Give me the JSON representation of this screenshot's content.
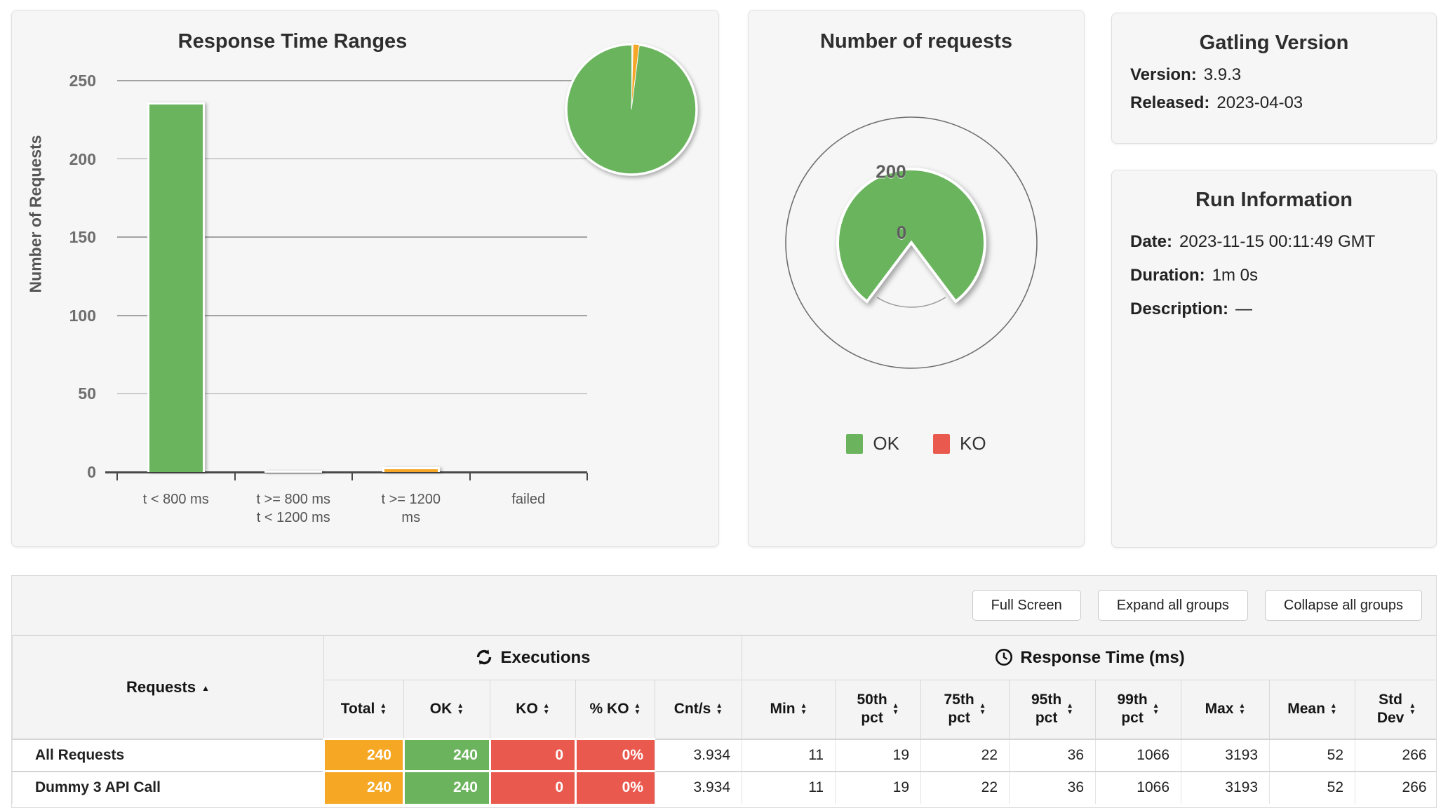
{
  "colors": {
    "bar_green": "#6ab45e",
    "bar_yellow": "#f8d648",
    "bar_orange": "#f7a728",
    "gauge_green": "#6ab45e",
    "cell_orange": "#f6a723",
    "cell_green": "#6bb35c",
    "cell_red": "#ea594e",
    "legend_green": "#6bb35c",
    "legend_red": "#e9594e"
  },
  "chart_data": [
    {
      "type": "bar",
      "title": "Response Time Ranges",
      "xlabel": "",
      "ylabel": "Number of Requests",
      "categories": [
        "t < 800 ms",
        "t >= 800 ms t < 1200 ms",
        "t >= 1200 ms",
        "failed"
      ],
      "categories_lines": [
        [
          "t < 800 ms"
        ],
        [
          "t >= 800 ms",
          "t < 1200 ms"
        ],
        [
          "t >= 1200",
          "ms"
        ],
        [
          "failed"
        ]
      ],
      "values": [
        236,
        1,
        3,
        0
      ],
      "bar_colors": [
        "#6ab45e",
        "#f8d648",
        "#f7a728",
        "#ea594e"
      ],
      "ylim": [
        0,
        250
      ],
      "yticks": [
        0,
        50,
        100,
        150,
        200,
        250
      ],
      "grid": true,
      "legend_position": "none"
    },
    {
      "type": "pie",
      "title": "Response time ranges inset pie",
      "labels": [
        "t < 800 ms",
        "t >= 800 ms t < 1200 ms",
        "t >= 1200 ms",
        "failed"
      ],
      "values": [
        236,
        1,
        3,
        0
      ],
      "colors": [
        "#6ab45e",
        "#ffffff",
        "#f7a728",
        "#ea594e"
      ]
    },
    {
      "type": "pie",
      "title": "Number of requests",
      "labels": [
        "OK",
        "KO"
      ],
      "values": [
        240,
        0
      ],
      "colors": [
        "#6ab45e",
        "#e9594e"
      ],
      "axis_tick_labels": [
        "200",
        "0"
      ],
      "legend": [
        "OK",
        "KO"
      ],
      "legend_position": "bottom"
    }
  ],
  "info": {
    "gatling_version": {
      "title": "Gatling Version",
      "version_label": "Version:",
      "version_value": "3.9.3",
      "released_label": "Released:",
      "released_value": "2023-04-03"
    },
    "run_information": {
      "title": "Run Information",
      "date_label": "Date:",
      "date_value": "2023-11-15 00:11:49 GMT",
      "duration_label": "Duration:",
      "duration_value": "1m 0s",
      "description_label": "Description:",
      "description_value": "—"
    }
  },
  "toolbar": {
    "full_screen": "Full Screen",
    "expand_all": "Expand all groups",
    "collapse_all": "Collapse all groups"
  },
  "statistics_table": {
    "requests_header": "Requests",
    "groups": {
      "executions": "Executions",
      "response_time": "Response Time (ms)"
    },
    "columns": [
      "Total",
      "OK",
      "KO",
      "% KO",
      "Cnt/s",
      "Min",
      "50th\npct",
      "75th\npct",
      "95th\npct",
      "99th\npct",
      "Max",
      "Mean",
      "Std\nDev"
    ],
    "rows": [
      {
        "name": "All Requests",
        "cells": [
          "240",
          "240",
          "0",
          "0%",
          "3.934",
          "11",
          "19",
          "22",
          "36",
          "1066",
          "3193",
          "52",
          "266"
        ]
      },
      {
        "name": "Dummy 3 API Call",
        "cells": [
          "240",
          "240",
          "0",
          "0%",
          "3.934",
          "11",
          "19",
          "22",
          "36",
          "1066",
          "3193",
          "52",
          "266"
        ]
      }
    ]
  }
}
